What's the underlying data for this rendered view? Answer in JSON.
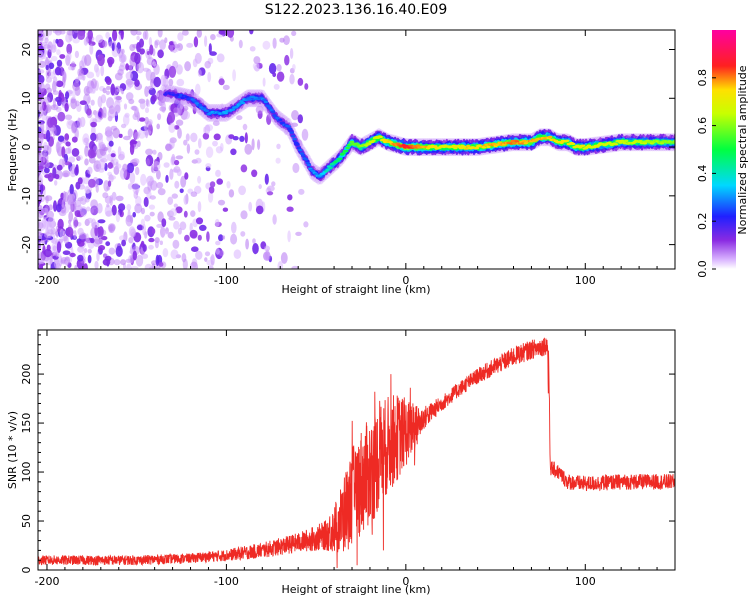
{
  "title": "S122.2023.136.16.40.E09",
  "colors": {
    "snr_line": "#ee2a24",
    "ridge": "#ff1a1a"
  },
  "chart_data": [
    {
      "type": "heatmap",
      "name": "spectrogram",
      "xlabel": "Height of straight line (km)",
      "ylabel": "Frequency (Hz)",
      "xlim": [
        -205,
        150
      ],
      "ylim": [
        -25,
        24
      ],
      "xticks": [
        -200,
        -100,
        0,
        100
      ],
      "yticks": [
        -20,
        -10,
        0,
        10,
        20
      ],
      "colorbar": {
        "label": "Normalized spectral amplitude",
        "range": [
          0.0,
          1.0
        ],
        "ticks": [
          "0.0",
          "0.2",
          "0.4",
          "0.6",
          "0.8"
        ],
        "colormap": "rainbow (violet → blue → cyan → green → yellow → red → magenta)"
      },
      "ridge": {
        "x": [
          -132,
          -120,
          -110,
          -100,
          -88,
          -80,
          -72,
          -65,
          -60,
          -55,
          -52,
          -48,
          -42,
          -36,
          -30,
          -25,
          -20,
          -15,
          -10,
          0,
          20,
          40,
          60,
          70,
          75,
          80,
          85,
          90,
          95,
          100,
          120,
          150
        ],
        "y": [
          11,
          10,
          7,
          7,
          10,
          10,
          6,
          4,
          0,
          -3,
          -5,
          -6,
          -4,
          -2,
          1,
          0,
          1,
          2,
          1,
          0,
          0,
          0,
          1,
          1,
          2,
          2,
          1,
          1,
          0,
          0,
          1,
          1
        ]
      },
      "ridge_amplitude": {
        "x": [
          -132,
          -110,
          -88,
          -72,
          -60,
          -50,
          -40,
          -30,
          -20,
          0,
          20,
          40,
          60,
          80,
          100,
          150
        ],
        "value": [
          0.2,
          0.3,
          0.3,
          0.25,
          0.25,
          0.3,
          0.45,
          0.55,
          0.65,
          0.85,
          0.7,
          0.75,
          0.8,
          0.75,
          0.7,
          0.6
        ]
      }
    },
    {
      "type": "line",
      "name": "snr",
      "xlabel": "Height of straight line (km)",
      "ylabel": "SNR (10 * v/v)",
      "xlim": [
        -205,
        150
      ],
      "ylim": [
        0,
        245
      ],
      "xticks": [
        -200,
        -100,
        0,
        100
      ],
      "yticks": [
        0,
        50,
        100,
        150,
        200
      ],
      "series": [
        {
          "envelope_x": [
            -205,
            -150,
            -120,
            -100,
            -80,
            -60,
            -45,
            -38,
            -35,
            -30,
            -25,
            -20,
            -15,
            -10,
            -5,
            0,
            5,
            10,
            20,
            30,
            40,
            50,
            60,
            70,
            79,
            80,
            85,
            90,
            100,
            120,
            150
          ],
          "envelope_y": [
            10,
            10,
            12,
            15,
            20,
            28,
            35,
            45,
            55,
            75,
            90,
            100,
            115,
            128,
            135,
            140,
            145,
            155,
            170,
            185,
            198,
            208,
            218,
            225,
            230,
            105,
            100,
            90,
            88,
            90,
            90
          ],
          "noise_amplitude": [
            5,
            5,
            5,
            6,
            8,
            10,
            15,
            30,
            40,
            50,
            55,
            55,
            55,
            50,
            45,
            35,
            25,
            12,
            8,
            8,
            8,
            9,
            10,
            10,
            10,
            8,
            8,
            8,
            8,
            8,
            8
          ]
        }
      ]
    }
  ]
}
